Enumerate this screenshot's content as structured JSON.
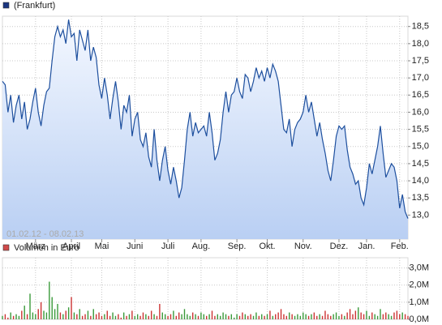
{
  "chart_data": [
    {
      "type": "line",
      "series": [
        {
          "name": "(Frankfurt)",
          "color": "#1d4f9e",
          "swatch_color": "#1a3580",
          "values": [
            16.9,
            16.8,
            16.0,
            16.5,
            15.7,
            16.2,
            16.5,
            15.8,
            16.3,
            15.5,
            15.8,
            16.3,
            16.7,
            16.0,
            15.6,
            16.2,
            16.6,
            16.7,
            17.5,
            18.2,
            18.5,
            18.2,
            18.4,
            18.0,
            18.7,
            18.2,
            18.3,
            17.5,
            18.4,
            18.1,
            17.8,
            18.4,
            17.5,
            17.9,
            17.6,
            16.8,
            16.4,
            17.0,
            16.5,
            15.8,
            16.4,
            16.9,
            16.3,
            15.5,
            16.2,
            16.0,
            16.5,
            15.3,
            15.8,
            16.0,
            15.2,
            15.0,
            15.4,
            14.7,
            14.4,
            15.5,
            14.6,
            14.0,
            14.6,
            15.0,
            14.3,
            13.9,
            14.4,
            14.0,
            13.5,
            13.8,
            14.6,
            15.5,
            16.0,
            15.3,
            15.7,
            15.4,
            15.5,
            15.6,
            15.3,
            16.0,
            15.4,
            14.6,
            14.8,
            15.2,
            16.0,
            16.6,
            16.0,
            16.5,
            16.6,
            17.0,
            16.6,
            16.4,
            17.1,
            17.0,
            16.6,
            16.9,
            17.3,
            17.0,
            17.2,
            16.9,
            17.3,
            17.0,
            17.4,
            17.2,
            16.9,
            16.2,
            15.5,
            15.4,
            15.8,
            15.0,
            15.5,
            15.7,
            15.8,
            16.0,
            16.5,
            16.0,
            16.3,
            15.8,
            15.3,
            15.7,
            15.2,
            14.8,
            14.3,
            14.0,
            14.6,
            15.3,
            15.6,
            15.5,
            15.6,
            14.9,
            14.4,
            14.2,
            13.9,
            14.0,
            13.5,
            13.3,
            13.8,
            14.5,
            14.2,
            14.6,
            15.0,
            15.6,
            14.8,
            14.1,
            14.3,
            14.5,
            14.4,
            14.0,
            13.2,
            13.6,
            13.1,
            12.9
          ]
        }
      ],
      "annotation": "01.02.12 - 08.02.13",
      "xlim": [
        0,
        147
      ],
      "xticks": [
        {
          "value": 12,
          "label": "März"
        },
        {
          "value": 25,
          "label": "April"
        },
        {
          "value": 36,
          "label": "Mai"
        },
        {
          "value": 48,
          "label": "Juni"
        },
        {
          "value": 60,
          "label": "Juli"
        },
        {
          "value": 72,
          "label": "Aug."
        },
        {
          "value": 85,
          "label": "Sep."
        },
        {
          "value": 96,
          "label": "Okt."
        },
        {
          "value": 109,
          "label": "Nov."
        },
        {
          "value": 122,
          "label": "Dez."
        },
        {
          "value": 132,
          "label": "Jan."
        },
        {
          "value": 144,
          "label": "Feb."
        }
      ],
      "ylim": [
        12.3,
        18.8
      ],
      "yticks": [
        {
          "value": 13.0,
          "label": "13,0"
        },
        {
          "value": 13.5,
          "label": "13,5"
        },
        {
          "value": 14.0,
          "label": "14,0"
        },
        {
          "value": 14.5,
          "label": "14,5"
        },
        {
          "value": 15.0,
          "label": "15,0"
        },
        {
          "value": 15.5,
          "label": "15,5"
        },
        {
          "value": 16.0,
          "label": "16,0"
        },
        {
          "value": 16.5,
          "label": "16,5"
        },
        {
          "value": 17.0,
          "label": "17,0"
        },
        {
          "value": 17.5,
          "label": "17,5"
        },
        {
          "value": 18.0,
          "label": "18,0"
        },
        {
          "value": 18.5,
          "label": "18,5"
        }
      ],
      "grid": true
    },
    {
      "type": "bar",
      "series": [
        {
          "name": "Volumen in Euro",
          "swatch_color": "#d04a4a",
          "up_color": "#3a9a3a",
          "down_color": "#cc3333",
          "values": [
            0.2,
            0.3,
            0.1,
            0.4,
            0.2,
            0.3,
            0.2,
            0.5,
            0.8,
            0.3,
            1.5,
            0.4,
            0.3,
            0.6,
            1.0,
            0.5,
            0.4,
            2.2,
            1.3,
            0.6,
            0.9,
            0.4,
            0.3,
            0.5,
            0.7,
            1.3,
            0.4,
            0.3,
            0.6,
            0.2,
            0.3,
            0.5,
            0.2,
            0.6,
            0.3,
            0.4,
            0.2,
            0.3,
            0.5,
            0.2,
            0.4,
            0.2,
            0.3,
            0.1,
            0.4,
            0.2,
            0.3,
            0.5,
            0.2,
            0.3,
            0.2,
            0.4,
            0.3,
            0.2,
            0.5,
            0.3,
            0.2,
            0.9,
            0.4,
            0.3,
            0.2,
            0.3,
            0.5,
            0.2,
            0.4,
            0.3,
            0.6,
            0.3,
            0.2,
            0.4,
            0.3,
            0.2,
            0.4,
            0.3,
            0.2,
            0.3,
            0.5,
            0.2,
            0.3,
            0.2,
            0.4,
            0.3,
            0.2,
            0.3,
            0.1,
            0.3,
            0.2,
            0.4,
            0.3,
            0.2,
            0.3,
            0.2,
            0.4,
            0.2,
            0.3,
            0.2,
            0.3,
            0.5,
            0.2,
            0.3,
            0.4,
            0.6,
            0.3,
            0.2,
            0.4,
            0.3,
            0.2,
            0.3,
            0.2,
            0.4,
            0.3,
            0.2,
            0.3,
            0.4,
            0.2,
            0.3,
            0.2,
            0.5,
            0.3,
            0.2,
            0.3,
            0.4,
            0.2,
            0.3,
            0.2,
            0.4,
            0.6,
            0.3,
            0.5,
            0.7,
            0.4,
            0.3,
            0.5,
            0.2,
            0.4,
            0.3,
            0.2,
            0.6,
            0.3,
            0.4,
            0.3,
            0.2,
            0.4,
            0.5,
            0.3,
            0.4,
            0.3,
            0.2
          ]
        }
      ],
      "ylim": [
        0,
        3.6
      ],
      "yticks": [
        {
          "value": 0,
          "label": "0,0M"
        },
        {
          "value": 1,
          "label": "1,0M"
        },
        {
          "value": 2,
          "label": "2,0M"
        },
        {
          "value": 3,
          "label": "3,0M"
        }
      ],
      "grid": true
    }
  ]
}
